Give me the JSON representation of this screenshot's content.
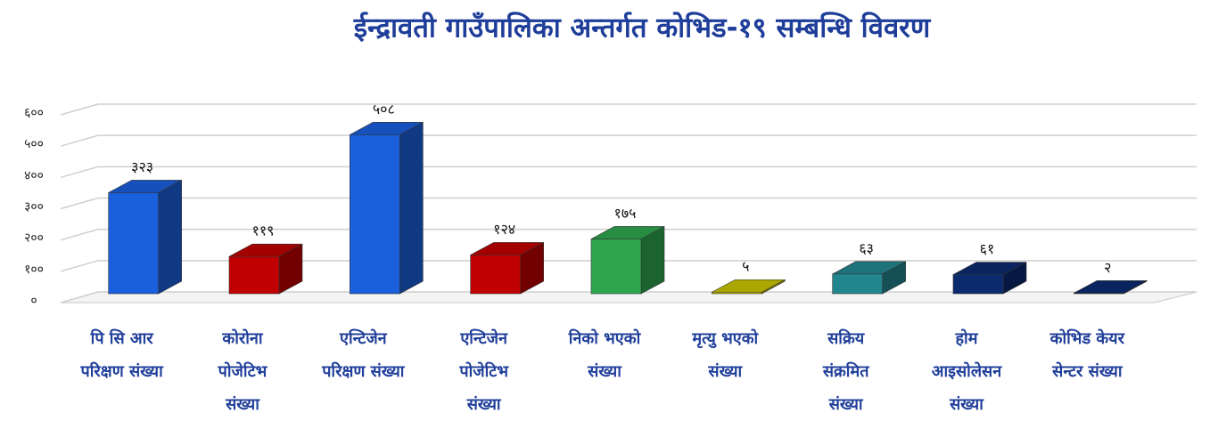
{
  "chart_data": {
    "type": "bar3d",
    "title": "ईन्द्रावती गाउँपालिका अन्तर्गत कोभिड-१९ सम्बन्धि  विवरण",
    "categories": [
      [
        "पि सि आर",
        "परिक्षण संख्या"
      ],
      [
        "कोरोना",
        "पोजेटिभ",
        "संख्या"
      ],
      [
        "एन्टिजेन",
        "परिक्षण संख्या"
      ],
      [
        "एन्टिजेन",
        "पोजेटिभ",
        "संख्या"
      ],
      [
        "निको भएको",
        "संख्या"
      ],
      [
        "मृत्यु भएको",
        "संख्या"
      ],
      [
        "सक्रिय",
        "संक्रमित",
        "संख्या"
      ],
      [
        "होम",
        "आइसोलेसन",
        "संख्या"
      ],
      [
        "कोभिड केयर",
        "सेन्टर संख्या"
      ]
    ],
    "values": [
      323,
      119,
      508,
      124,
      175,
      5,
      63,
      61,
      2
    ],
    "value_labels": [
      "३२३",
      "११९",
      "५०८",
      "१२४",
      "१७५",
      "५",
      "६३",
      "६१",
      "२"
    ],
    "colors": [
      "#1a5fdc",
      "#c00000",
      "#1a5fdc",
      "#c00000",
      "#2ea64e",
      "#c9c400",
      "#23868f",
      "#0b2a6e",
      "#0b2a6e"
    ],
    "ylim": [
      0,
      600
    ],
    "yticks": [
      {
        "value": 0,
        "label": "०"
      },
      {
        "value": 100,
        "label": "१००"
      },
      {
        "value": 200,
        "label": "२००"
      },
      {
        "value": 300,
        "label": "३००"
      },
      {
        "value": 400,
        "label": "४००"
      },
      {
        "value": 500,
        "label": "५००"
      },
      {
        "value": 600,
        "label": "६००"
      }
    ],
    "grid": true
  }
}
